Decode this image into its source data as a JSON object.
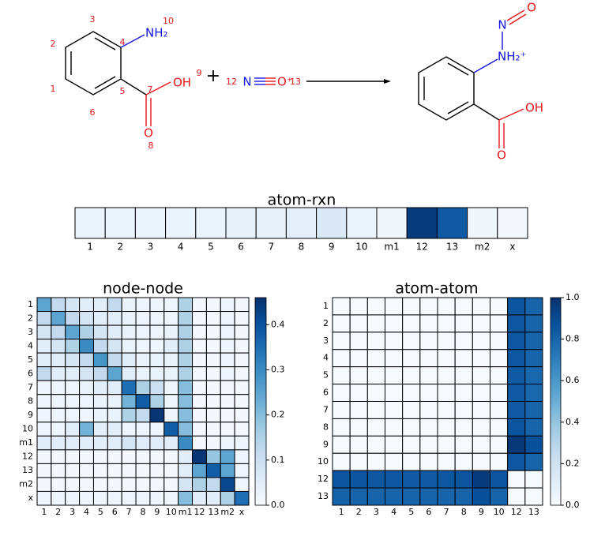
{
  "reaction": {
    "reactant_labels": [
      "3",
      "10",
      "2",
      "4",
      "1",
      "5",
      "7",
      "9",
      "6",
      "8",
      "12",
      "13"
    ],
    "reactant_groups": [
      "NH₂",
      "OH",
      "O",
      "N",
      "O⁺"
    ],
    "plus": "+",
    "product_groups": [
      "O",
      "N",
      "NH₂⁺",
      "OH",
      "O"
    ]
  },
  "chart_data": [
    {
      "type": "heatmap",
      "title": "atom-rxn",
      "categories": [
        "1",
        "2",
        "3",
        "4",
        "5",
        "6",
        "7",
        "8",
        "9",
        "10",
        "m1",
        "12",
        "13",
        "m2",
        "x"
      ],
      "values": [
        0.03,
        0.03,
        0.03,
        0.03,
        0.03,
        0.04,
        0.04,
        0.05,
        0.07,
        0.03,
        0.02,
        0.48,
        0.42,
        0.02,
        0.01
      ],
      "zlim": [
        0,
        0.5
      ],
      "colormap": [
        "#f7fbff",
        "#deebf7",
        "#c6dbef",
        "#9ecae1",
        "#6baed6",
        "#4292c6",
        "#2171b5",
        "#08519c",
        "#08306b"
      ]
    },
    {
      "type": "heatmap",
      "title": "node-node",
      "x": [
        "1",
        "2",
        "3",
        "4",
        "5",
        "6",
        "7",
        "8",
        "9",
        "10",
        "m1",
        "12",
        "13",
        "m2",
        "x"
      ],
      "y": [
        "1",
        "2",
        "3",
        "4",
        "5",
        "6",
        "7",
        "8",
        "9",
        "10",
        "m1",
        "12",
        "13",
        "m2",
        "x"
      ],
      "values": [
        [
          0.25,
          0.12,
          0.08,
          0.05,
          0.05,
          0.12,
          0.03,
          0.02,
          0.02,
          0.02,
          0.15,
          0.01,
          0.01,
          0.02,
          0.01
        ],
        [
          0.12,
          0.25,
          0.12,
          0.08,
          0.05,
          0.05,
          0.03,
          0.02,
          0.02,
          0.02,
          0.15,
          0.01,
          0.01,
          0.02,
          0.01
        ],
        [
          0.08,
          0.12,
          0.25,
          0.15,
          0.08,
          0.05,
          0.03,
          0.02,
          0.02,
          0.03,
          0.15,
          0.01,
          0.01,
          0.02,
          0.01
        ],
        [
          0.05,
          0.08,
          0.15,
          0.3,
          0.12,
          0.08,
          0.03,
          0.02,
          0.02,
          0.05,
          0.15,
          0.01,
          0.01,
          0.02,
          0.01
        ],
        [
          0.05,
          0.05,
          0.08,
          0.12,
          0.28,
          0.12,
          0.05,
          0.03,
          0.03,
          0.03,
          0.15,
          0.01,
          0.01,
          0.02,
          0.01
        ],
        [
          0.12,
          0.05,
          0.05,
          0.08,
          0.12,
          0.25,
          0.05,
          0.03,
          0.03,
          0.03,
          0.15,
          0.01,
          0.01,
          0.02,
          0.01
        ],
        [
          0.02,
          0.02,
          0.02,
          0.03,
          0.05,
          0.05,
          0.35,
          0.15,
          0.1,
          0.02,
          0.2,
          0.01,
          0.01,
          0.01,
          0.01
        ],
        [
          0.02,
          0.02,
          0.02,
          0.02,
          0.03,
          0.03,
          0.22,
          0.38,
          0.15,
          0.02,
          0.2,
          0.01,
          0.01,
          0.01,
          0.01
        ],
        [
          0.02,
          0.02,
          0.02,
          0.02,
          0.03,
          0.03,
          0.15,
          0.12,
          0.45,
          0.02,
          0.2,
          0.01,
          0.01,
          0.01,
          0.01
        ],
        [
          0.02,
          0.02,
          0.05,
          0.22,
          0.05,
          0.05,
          0.02,
          0.02,
          0.02,
          0.38,
          0.2,
          0.01,
          0.01,
          0.01,
          0.01
        ],
        [
          0.05,
          0.05,
          0.05,
          0.05,
          0.05,
          0.05,
          0.08,
          0.05,
          0.05,
          0.05,
          0.3,
          0.01,
          0.01,
          0.02,
          0.02
        ],
        [
          0.01,
          0.01,
          0.01,
          0.01,
          0.01,
          0.01,
          0.01,
          0.01,
          0.01,
          0.01,
          0.05,
          0.45,
          0.18,
          0.25,
          0.02
        ],
        [
          0.01,
          0.01,
          0.01,
          0.01,
          0.01,
          0.01,
          0.01,
          0.01,
          0.01,
          0.01,
          0.05,
          0.25,
          0.38,
          0.25,
          0.02
        ],
        [
          0.01,
          0.01,
          0.01,
          0.01,
          0.01,
          0.01,
          0.01,
          0.01,
          0.01,
          0.01,
          0.08,
          0.15,
          0.12,
          0.42,
          0.02
        ],
        [
          0.02,
          0.02,
          0.02,
          0.02,
          0.02,
          0.02,
          0.02,
          0.02,
          0.02,
          0.02,
          0.2,
          0.05,
          0.05,
          0.15,
          0.35
        ]
      ],
      "zlim": [
        0,
        0.46
      ],
      "colorbar_ticks": [
        {
          "value": 0,
          "label": "0.0"
        },
        0.1,
        0.2,
        0.3,
        0.4
      ],
      "colormap": [
        "#f7fbff",
        "#deebf7",
        "#c6dbef",
        "#9ecae1",
        "#6baed6",
        "#4292c6",
        "#2171b5",
        "#08519c",
        "#08306b"
      ]
    },
    {
      "type": "heatmap",
      "title": "atom-atom",
      "x": [
        "1",
        "2",
        "3",
        "4",
        "5",
        "6",
        "7",
        "8",
        "9",
        "10",
        "12",
        "13"
      ],
      "y": [
        "1",
        "2",
        "3",
        "4",
        "5",
        "6",
        "7",
        "8",
        "9",
        "10",
        "12",
        "13"
      ],
      "values": [
        [
          0.01,
          0.01,
          0.01,
          0.01,
          0.01,
          0.01,
          0.01,
          0.01,
          0.01,
          0.01,
          0.86,
          0.8
        ],
        [
          0.01,
          0.01,
          0.01,
          0.01,
          0.01,
          0.01,
          0.01,
          0.01,
          0.01,
          0.01,
          0.85,
          0.8
        ],
        [
          0.01,
          0.01,
          0.01,
          0.01,
          0.01,
          0.01,
          0.01,
          0.01,
          0.01,
          0.01,
          0.85,
          0.8
        ],
        [
          0.01,
          0.01,
          0.01,
          0.01,
          0.01,
          0.01,
          0.01,
          0.01,
          0.01,
          0.01,
          0.85,
          0.8
        ],
        [
          0.01,
          0.01,
          0.01,
          0.01,
          0.01,
          0.01,
          0.01,
          0.01,
          0.01,
          0.01,
          0.84,
          0.79
        ],
        [
          0.01,
          0.01,
          0.01,
          0.01,
          0.01,
          0.01,
          0.01,
          0.01,
          0.01,
          0.01,
          0.84,
          0.79
        ],
        [
          0.01,
          0.01,
          0.01,
          0.01,
          0.01,
          0.01,
          0.01,
          0.01,
          0.01,
          0.01,
          0.84,
          0.8
        ],
        [
          0.01,
          0.01,
          0.01,
          0.01,
          0.01,
          0.01,
          0.01,
          0.01,
          0.01,
          0.01,
          0.86,
          0.8
        ],
        [
          0.01,
          0.01,
          0.01,
          0.01,
          0.01,
          0.01,
          0.01,
          0.01,
          0.01,
          0.01,
          0.97,
          0.88
        ],
        [
          0.01,
          0.01,
          0.01,
          0.01,
          0.01,
          0.01,
          0.01,
          0.01,
          0.01,
          0.01,
          0.85,
          0.8
        ],
        [
          0.86,
          0.86,
          0.85,
          0.85,
          0.84,
          0.84,
          0.85,
          0.86,
          0.96,
          0.86,
          0.01,
          0.01
        ],
        [
          0.81,
          0.8,
          0.8,
          0.8,
          0.8,
          0.8,
          0.8,
          0.8,
          0.88,
          0.8,
          0.01,
          0.01
        ]
      ],
      "zlim": [
        0,
        1
      ],
      "colorbar_ticks": [
        {
          "value": 0,
          "label": "0.0"
        },
        0.2,
        0.4,
        0.6,
        0.8,
        {
          "value": 1,
          "label": "1.0"
        }
      ],
      "colormap": [
        "#f7fbff",
        "#deebf7",
        "#c6dbef",
        "#9ecae1",
        "#6baed6",
        "#4292c6",
        "#2171b5",
        "#08519c",
        "#08306b"
      ]
    }
  ]
}
